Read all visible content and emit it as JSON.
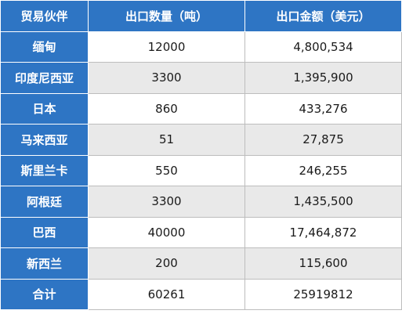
{
  "table": {
    "headers": [
      "贸易伙伴",
      "出口数量（吨）",
      "出口金额（美元）"
    ],
    "rows": [
      {
        "partner": "缅甸",
        "quantity": "12000",
        "amount": "4,800,534"
      },
      {
        "partner": "印度尼西亚",
        "quantity": "3300",
        "amount": "1,395,900"
      },
      {
        "partner": "日本",
        "quantity": "860",
        "amount": "433,276"
      },
      {
        "partner": "马来西亚",
        "quantity": "51",
        "amount": "27,875"
      },
      {
        "partner": "斯里兰卡",
        "quantity": "550",
        "amount": "246,255"
      },
      {
        "partner": "阿根廷",
        "quantity": "3300",
        "amount": "1,435,500"
      },
      {
        "partner": "巴西",
        "quantity": "40000",
        "amount": "17,464,872"
      },
      {
        "partner": "新西兰",
        "quantity": "200",
        "amount": "115,600"
      },
      {
        "partner": "合计",
        "quantity": "60261",
        "amount": "25919812"
      }
    ]
  },
  "colors": {
    "header_bg": "#2e75c4",
    "header_text": "#ffffff",
    "stripe_bg": "#e9e9e9",
    "plain_bg": "#ffffff"
  }
}
